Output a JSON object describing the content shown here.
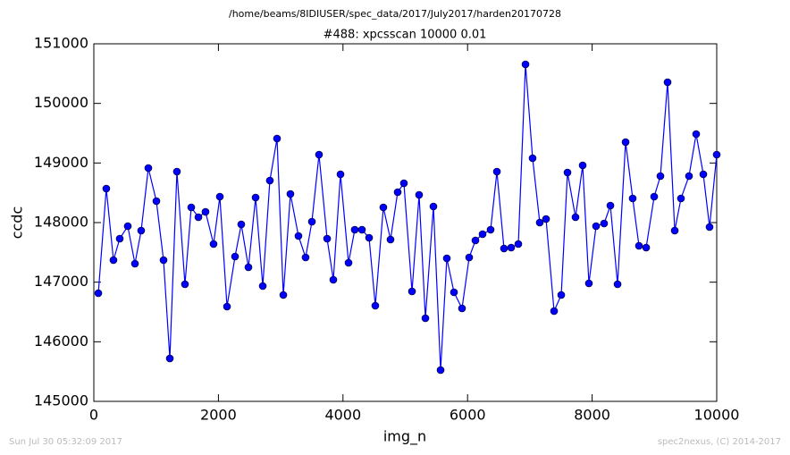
{
  "chart_data": {
    "type": "line",
    "suptitle": "/home/beams/8IDIUSER/spec_data/2017/July2017/harden20170728",
    "title": "#488: xpcsscan 10000 0.01",
    "xlabel": "img_n",
    "ylabel": "ccdc",
    "footer_left": "Sun Jul 30 05:32:09 2017",
    "footer_right": "spec2nexus, (C) 2014-2017",
    "xlim": [
      0,
      10000
    ],
    "xticks": [
      0,
      2000,
      4000,
      6000,
      8000,
      10000
    ],
    "ylim": [
      145000,
      151000
    ],
    "yticks": [
      145000,
      146000,
      147000,
      148000,
      149000,
      150000,
      151000
    ],
    "grid": false,
    "series": [
      {
        "name": "ccdc",
        "color": "#0000ff",
        "x": [
          72,
          200,
          315,
          416,
          545,
          660,
          760,
          875,
          1004,
          1119,
          1220,
          1334,
          1463,
          1564,
          1679,
          1793,
          1922,
          2023,
          2138,
          2267,
          2367,
          2482,
          2597,
          2712,
          2826,
          2941,
          3042,
          3156,
          3285,
          3400,
          3501,
          3615,
          3745,
          3845,
          3960,
          4089,
          4189,
          4304,
          4419,
          4519,
          4648,
          4763,
          4878,
          4978,
          5108,
          5222,
          5323,
          5452,
          5567,
          5667,
          5782,
          5911,
          6026,
          6126,
          6241,
          6370,
          6471,
          6585,
          6700,
          6815,
          6930,
          7044,
          7159,
          7260,
          7389,
          7504,
          7604,
          7733,
          7848,
          7948,
          8063,
          8192,
          8293,
          8408,
          8537,
          8651,
          8752,
          8867,
          8996,
          9096,
          9211,
          9326,
          9426,
          9555,
          9670,
          9785,
          9885,
          10000
        ],
        "values": [
          146815,
          148570,
          147370,
          147730,
          147940,
          147310,
          147865,
          148915,
          148360,
          147370,
          145720,
          148855,
          146965,
          148255,
          148090,
          148180,
          147640,
          148435,
          146590,
          147430,
          147970,
          147250,
          148420,
          146935,
          148705,
          149410,
          146785,
          148480,
          147775,
          147415,
          148015,
          149140,
          147730,
          147040,
          148810,
          147325,
          147880,
          147880,
          147745,
          146605,
          148255,
          147715,
          148510,
          148660,
          146845,
          148465,
          146395,
          148270,
          145525,
          147400,
          146830,
          146560,
          147415,
          147700,
          147805,
          147880,
          148855,
          147565,
          147580,
          147640,
          150655,
          149080,
          148000,
          148060,
          146515,
          146785,
          148840,
          148090,
          148960,
          146980,
          147940,
          147985,
          148285,
          146965,
          149350,
          148405,
          147610,
          147580,
          148435,
          148780,
          150355,
          147865,
          148405,
          148780,
          149485,
          148810,
          147925,
          149140
        ]
      }
    ]
  }
}
